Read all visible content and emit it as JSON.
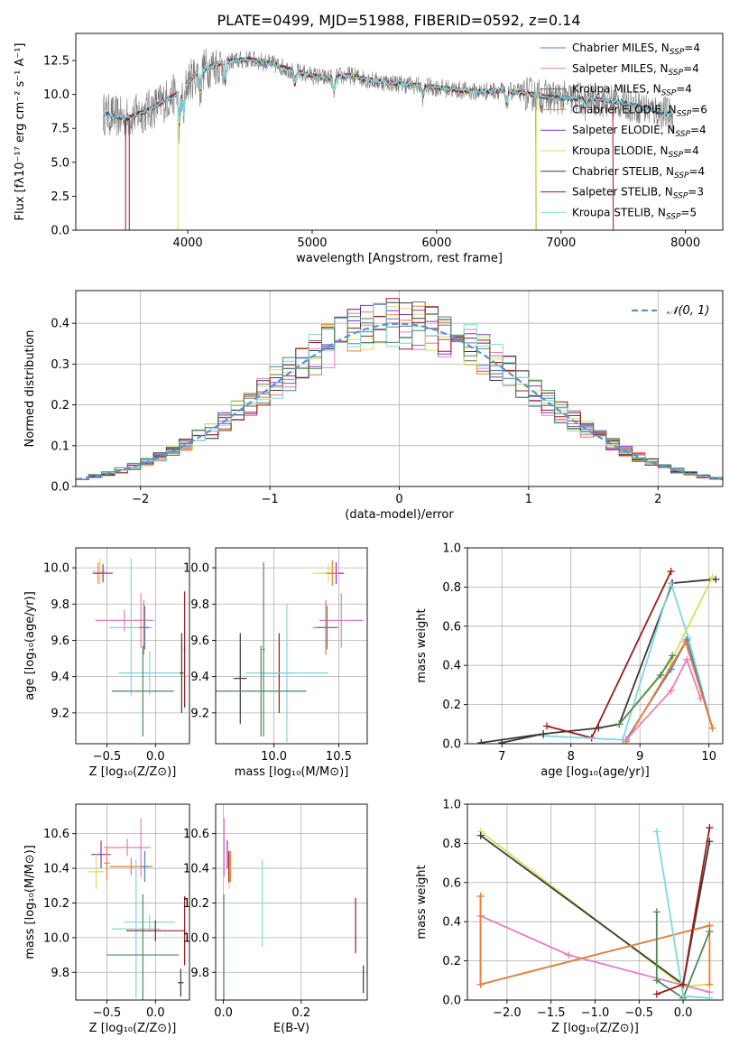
{
  "figure_title": "PLATE=0499, MJD=51988, FIBERID=0592, z=0.14",
  "colors": {
    "c_miles": "#4f7fbf",
    "s_miles": "#e27fc0",
    "k_miles": "#6b6b6b",
    "c_elodie": "#ef7f2f",
    "s_elodie": "#8b31c6",
    "k_elodie": "#d7df5b",
    "c_stelib": "#3a3a3a",
    "s_stelib": "#9e1b1b",
    "k_stelib": "#7fd8dc",
    "green": "#4e8a5a",
    "normal": "#5b8fd6"
  },
  "chart_data": [
    {
      "id": "spectrum",
      "type": "line",
      "title": "PLATE=0499, MJD=51988, FIBERID=0592, z=0.14",
      "xlabel": "wavelength [Angstrom, rest frame]",
      "ylabel": "Flux [fλ10⁻¹⁷ erg cm⁻² s⁻¹ A⁻¹]",
      "xlim": [
        3100,
        8300
      ],
      "ylim": [
        0,
        14.5
      ],
      "xticks": [
        "4000",
        "5000",
        "6000",
        "7000",
        "8000"
      ],
      "yticks": [
        "0.0",
        "2.5",
        "5.0",
        "7.5",
        "10.0",
        "12.5"
      ],
      "grid": false,
      "legend_position": "top-right",
      "continuum_x": [
        3320,
        3500,
        3700,
        3900,
        4100,
        4300,
        4500,
        4700,
        4900,
        5100,
        5300,
        5500,
        5700,
        5900,
        6100,
        6300,
        6500,
        6700,
        6900,
        7100,
        7300,
        7500,
        7700,
        7900
      ],
      "continuum_y": [
        8.6,
        8.2,
        8.9,
        10.0,
        11.8,
        12.4,
        12.6,
        12.2,
        11.6,
        11.2,
        11.4,
        11.0,
        10.8,
        10.6,
        10.4,
        10.2,
        10.3,
        10.1,
        9.8,
        9.7,
        9.6,
        9.4,
        8.9,
        8.5
      ],
      "series": [
        {
          "name": "Chabrier MILES, N_SSP=4",
          "legend_main": "Chabrier MILES, N",
          "legend_tail": "=4",
          "color_key": "c_miles"
        },
        {
          "name": "Salpeter MILES, N_SSP=4",
          "legend_main": "Salpeter MILES, N",
          "legend_tail": "=4",
          "color_key": "s_miles"
        },
        {
          "name": "Kroupa MILES, N_SSP=4",
          "legend_main": "Kroupa MILES, N",
          "legend_tail": "=4",
          "color_key": "k_miles"
        },
        {
          "name": "Chabrier ELODIE, N_SSP=6",
          "legend_main": "Chabrier ELODIE, N",
          "legend_tail": "=6",
          "color_key": "c_elodie"
        },
        {
          "name": "Salpeter ELODIE, N_SSP=4",
          "legend_main": "Salpeter ELODIE, N",
          "legend_tail": "=4",
          "color_key": "s_elodie"
        },
        {
          "name": "Kroupa ELODIE, N_SSP=4",
          "legend_main": "Kroupa ELODIE, N",
          "legend_tail": "=4",
          "color_key": "k_elodie"
        },
        {
          "name": "Chabrier STELIB, N_SSP=4",
          "legend_main": "Chabrier STELIB, N",
          "legend_tail": "=4",
          "color_key": "c_stelib"
        },
        {
          "name": "Salpeter STELIB, N_SSP=3",
          "legend_main": "Salpeter STELIB, N",
          "legend_tail": "=3",
          "color_key": "s_stelib"
        },
        {
          "name": "Kroupa STELIB, N_SSP=5",
          "legend_main": "Kroupa STELIB, N",
          "legend_tail": "=5",
          "color_key": "k_stelib"
        }
      ],
      "legend_sub": "SSP"
    },
    {
      "id": "residuals",
      "type": "histogram",
      "xlabel": "(data-model)/error",
      "ylabel": "Normed distribution",
      "xlim": [
        -2.5,
        2.5
      ],
      "ylim": [
        0,
        0.48
      ],
      "xticks": [
        "−2",
        "−1",
        "0",
        "1",
        "2"
      ],
      "yticks": [
        "0.0",
        "0.1",
        "0.2",
        "0.3",
        "0.4"
      ],
      "grid": true,
      "legend_position": "top-right",
      "legend": "𝒩(0, 1)",
      "bin_width": 0.1,
      "curve": {
        "name": "N(0,1)",
        "mean": 0,
        "sigma": 1
      }
    },
    {
      "id": "z_age",
      "type": "errorbar",
      "xlabel": "Z [log₁₀(Z/Z⊙)]",
      "ylabel": "age  [log₁₀(age/yr)]",
      "xlim": [
        -0.82,
        0.35
      ],
      "ylim": [
        9.03,
        10.11
      ],
      "xticks": [
        "−0.5",
        "0.0"
      ],
      "yticks": [
        "9.2",
        "9.4",
        "9.6",
        "9.8",
        "10.0"
      ],
      "grid": true,
      "points": [
        {
          "x": -0.59,
          "y": 9.97,
          "xerr": 0.06,
          "yerr": 0.06,
          "color_key": "c_elodie"
        },
        {
          "x": -0.57,
          "y": 9.98,
          "xerr": 0.08,
          "yerr": 0.07,
          "color_key": "k_elodie"
        },
        {
          "x": -0.54,
          "y": 9.97,
          "xerr": 0.1,
          "yerr": 0.05,
          "color_key": "s_elodie"
        },
        {
          "x": -0.32,
          "y": 9.71,
          "xerr": 0.3,
          "yerr": 0.06,
          "color_key": "s_miles"
        },
        {
          "x": -0.15,
          "y": 9.71,
          "xerr": 0.06,
          "yerr": 0.15,
          "color_key": "s_miles"
        },
        {
          "x": -0.25,
          "y": 9.67,
          "xerr": 0.22,
          "yerr": 0.38,
          "color_key": "k_stelib"
        },
        {
          "x": -0.12,
          "y": 9.67,
          "xerr": 0.06,
          "yerr": 0.15,
          "color_key": "c_elodie"
        },
        {
          "x": -0.11,
          "y": 9.67,
          "xerr": 0.04,
          "yerr": 0.12,
          "color_key": "c_miles"
        },
        {
          "x": -0.06,
          "y": 9.42,
          "xerr": 0.32,
          "yerr": 0.12,
          "color_key": "k_stelib"
        },
        {
          "x": -0.13,
          "y": 9.32,
          "xerr": 0.32,
          "yerr": 0.25,
          "color_key": "green"
        },
        {
          "x": 0.27,
          "y": 9.42,
          "xerr": 0.02,
          "yerr": 0.22,
          "color_key": "c_stelib"
        },
        {
          "x": 0.3,
          "y": 9.55,
          "xerr": 0.01,
          "yerr": 0.32,
          "color_key": "s_stelib"
        }
      ]
    },
    {
      "id": "mass_age",
      "type": "errorbar",
      "xlabel": "mass [log₁₀(M/M⊙)]",
      "ylabel": "",
      "xlim": [
        9.55,
        10.72
      ],
      "ylim": [
        9.03,
        10.11
      ],
      "xticks": [
        "10.0",
        "10.5"
      ],
      "yticks": [
        "9.2",
        "9.4",
        "9.6",
        "9.8",
        "10.0"
      ],
      "grid": true,
      "points": [
        {
          "x": 10.42,
          "y": 9.97,
          "xerr": 0.12,
          "yerr": 0.05,
          "color_key": "k_elodie"
        },
        {
          "x": 10.48,
          "y": 9.97,
          "xerr": 0.06,
          "yerr": 0.06,
          "color_key": "s_elodie"
        },
        {
          "x": 10.45,
          "y": 9.97,
          "xerr": 0.05,
          "yerr": 0.07,
          "color_key": "c_elodie"
        },
        {
          "x": 10.52,
          "y": 9.71,
          "xerr": 0.17,
          "yerr": 0.15,
          "color_key": "s_miles"
        },
        {
          "x": 10.4,
          "y": 9.67,
          "xerr": 0.1,
          "yerr": 0.15,
          "color_key": "c_elodie"
        },
        {
          "x": 10.41,
          "y": 9.67,
          "xerr": 0.08,
          "yerr": 0.12,
          "color_key": "c_miles"
        },
        {
          "x": 9.74,
          "y": 9.39,
          "xerr": 0.05,
          "yerr": 0.25,
          "color_key": "c_stelib"
        },
        {
          "x": 10.04,
          "y": 9.42,
          "xerr": 0.12,
          "yerr": 0.22,
          "color_key": "s_stelib"
        },
        {
          "x": 10.1,
          "y": 9.42,
          "xerr": 0.32,
          "yerr": 0.38,
          "color_key": "k_stelib"
        },
        {
          "x": 9.9,
          "y": 9.32,
          "xerr": 0.35,
          "yerr": 0.25,
          "color_key": "green"
        },
        {
          "x": 9.92,
          "y": 9.55,
          "xerr": 0.01,
          "yerr": 0.48,
          "color_key": "green"
        }
      ]
    },
    {
      "id": "age_weight",
      "type": "line",
      "xlabel": "age  [log₁₀(age/yr)]",
      "ylabel": "mass weight",
      "xlim": [
        6.5,
        10.2
      ],
      "ylim": [
        0,
        1.0
      ],
      "xticks": [
        "7",
        "8",
        "9",
        "10"
      ],
      "yticks": [
        "0.0",
        "0.2",
        "0.4",
        "0.6",
        "0.8",
        "1.0"
      ],
      "grid": true,
      "series": [
        {
          "color_key": "c_stelib",
          "x": [
            6.7,
            7.6,
            8.4,
            8.7,
            9.47,
            10.1
          ],
          "y": [
            0.005,
            0.05,
            0.08,
            0.1,
            0.82,
            0.84
          ]
        },
        {
          "color_key": "s_stelib",
          "x": [
            7.65,
            8.3,
            9.45
          ],
          "y": [
            0.09,
            0.03,
            0.88
          ]
        },
        {
          "color_key": "k_stelib",
          "x": [
            7.6,
            8.75,
            9.45,
            9.7,
            10.05
          ],
          "y": [
            0.04,
            0.02,
            0.82,
            0.54,
            0.08
          ]
        },
        {
          "color_key": "k_elodie",
          "x": [
            8.7,
            9.45,
            10.05
          ],
          "y": [
            0.1,
            0.42,
            0.85
          ]
        },
        {
          "color_key": "green",
          "x": [
            8.7,
            9.3,
            9.47
          ],
          "y": [
            0.1,
            0.35,
            0.45
          ]
        },
        {
          "color_key": "c_miles",
          "x": [
            8.8,
            9.45,
            9.68,
            10.05
          ],
          "y": [
            0.02,
            0.38,
            0.53,
            0.08
          ]
        },
        {
          "color_key": "c_elodie",
          "x": [
            8.8,
            9.66,
            10.05
          ],
          "y": [
            0.01,
            0.52,
            0.08
          ]
        },
        {
          "color_key": "s_miles",
          "x": [
            8.8,
            9.45,
            9.68,
            9.88
          ],
          "y": [
            0.02,
            0.27,
            0.43,
            0.23
          ]
        },
        {
          "color_key": "c_stelib",
          "x": [
            7.0,
            7.6
          ],
          "y": [
            0.005,
            0.05
          ]
        }
      ]
    },
    {
      "id": "z_mass",
      "type": "errorbar",
      "xlabel": "Z [log₁₀(Z/Z⊙)]",
      "ylabel": "mass [log₁₀(M/M⊙)]",
      "xlim": [
        -0.82,
        0.35
      ],
      "ylim": [
        9.64,
        10.77
      ],
      "xticks": [
        "−0.5",
        "0.0"
      ],
      "yticks": [
        "9.8",
        "10.0",
        "10.2",
        "10.4",
        "10.6"
      ],
      "grid": true,
      "points": [
        {
          "x": -0.56,
          "y": 10.48,
          "xerr": 0.1,
          "yerr": 0.08,
          "color_key": "s_elodie"
        },
        {
          "x": -0.61,
          "y": 10.38,
          "xerr": 0.08,
          "yerr": 0.1,
          "color_key": "k_elodie"
        },
        {
          "x": -0.5,
          "y": 10.43,
          "xerr": 0.03,
          "yerr": 0.1,
          "color_key": "c_elodie"
        },
        {
          "x": -0.29,
          "y": 10.52,
          "xerr": 0.24,
          "yerr": 0.05,
          "color_key": "s_miles"
        },
        {
          "x": -0.15,
          "y": 10.52,
          "xerr": 0.02,
          "yerr": 0.17,
          "color_key": "s_miles"
        },
        {
          "x": -0.25,
          "y": 10.41,
          "xerr": 0.22,
          "yerr": 0.05,
          "color_key": "c_elodie"
        },
        {
          "x": -0.11,
          "y": 10.41,
          "xerr": 0.04,
          "yerr": 0.09,
          "color_key": "c_miles"
        },
        {
          "x": -0.2,
          "y": 10.05,
          "xerr": 0.25,
          "yerr": 0.4,
          "color_key": "k_stelib"
        },
        {
          "x": -0.06,
          "y": 10.09,
          "xerr": 0.26,
          "yerr": 0.04,
          "color_key": "k_stelib"
        },
        {
          "x": -0.13,
          "y": 9.9,
          "xerr": 0.37,
          "yerr": 0.35,
          "color_key": "green"
        },
        {
          "x": 0.0,
          "y": 10.04,
          "xerr": 0.3,
          "yerr": 0.06,
          "color_key": "s_stelib"
        },
        {
          "x": 0.3,
          "y": 10.04,
          "xerr": 0.01,
          "yerr": 0.2,
          "color_key": "s_stelib"
        },
        {
          "x": 0.26,
          "y": 9.74,
          "xerr": 0.03,
          "yerr": 0.08,
          "color_key": "c_stelib"
        }
      ]
    },
    {
      "id": "ebv_mass",
      "type": "errorbar",
      "xlabel": "E(B-V)",
      "ylabel": "",
      "xlim": [
        -0.02,
        0.37
      ],
      "ylim": [
        9.64,
        10.77
      ],
      "xticks": [
        "0.0",
        "0.2"
      ],
      "yticks": [
        "9.8",
        "10.0",
        "10.2",
        "10.4",
        "10.6"
      ],
      "grid": true,
      "points": [
        {
          "x": 0.002,
          "y": 10.52,
          "xerr": 0,
          "yerr": 0.17,
          "color_key": "s_miles"
        },
        {
          "x": 0.01,
          "y": 10.48,
          "xerr": 0,
          "yerr": 0.08,
          "color_key": "s_elodie"
        },
        {
          "x": 0.015,
          "y": 10.38,
          "xerr": 0,
          "yerr": 0.1,
          "color_key": "k_elodie"
        },
        {
          "x": 0.018,
          "y": 10.41,
          "xerr": 0,
          "yerr": 0.09,
          "color_key": "c_elodie"
        },
        {
          "x": 0.014,
          "y": 10.41,
          "xerr": 0,
          "yerr": 0.09,
          "color_key": "s_stelib"
        },
        {
          "x": 0.001,
          "y": 9.9,
          "xerr": 0,
          "yerr": 0.35,
          "color_key": "green"
        },
        {
          "x": 0.1,
          "y": 10.2,
          "xerr": 0,
          "yerr": 0.25,
          "color_key": "k_stelib"
        },
        {
          "x": 0.34,
          "y": 10.07,
          "xerr": 0,
          "yerr": 0.16,
          "color_key": "s_stelib"
        },
        {
          "x": 0.36,
          "y": 9.76,
          "xerr": 0,
          "yerr": 0.08,
          "color_key": "c_stelib"
        }
      ]
    },
    {
      "id": "z_weight",
      "type": "line",
      "xlabel": "Z [log₁₀(Z/Z⊙)]",
      "ylabel": "mass weight",
      "xlim": [
        -2.45,
        0.45
      ],
      "ylim": [
        0,
        1.0
      ],
      "xticks": [
        "−2.0",
        "−1.5",
        "−1.0",
        "−0.5",
        "0.0"
      ],
      "yticks": [
        "0.0",
        "0.2",
        "0.4",
        "0.6",
        "0.8",
        "1.0"
      ],
      "grid": true,
      "series": [
        {
          "color_key": "k_elodie",
          "x": [
            -2.3,
            0.0,
            0.3
          ],
          "y": [
            0.86,
            0.07,
            0.08
          ]
        },
        {
          "color_key": "c_stelib",
          "x": [
            -2.3,
            0.0,
            0.3
          ],
          "y": [
            0.84,
            0.08,
            0.81
          ]
        },
        {
          "color_key": "s_miles",
          "x": [
            -2.3,
            -1.3,
            0.3
          ],
          "y": [
            0.43,
            0.23,
            0.04
          ]
        },
        {
          "color_key": "c_miles",
          "x": [
            -2.3,
            -2.3,
            0.3
          ],
          "y": [
            0.53,
            0.08,
            0.38
          ]
        },
        {
          "color_key": "c_elodie",
          "x": [
            -2.3,
            -2.3,
            0.3,
            0.3
          ],
          "y": [
            0.53,
            0.08,
            0.38,
            0.08
          ]
        },
        {
          "color_key": "green",
          "x": [
            -0.3,
            -0.3,
            0.0,
            0.3
          ],
          "y": [
            0.45,
            0.1,
            0.01,
            0.35
          ]
        },
        {
          "color_key": "k_stelib",
          "x": [
            -0.3,
            0.0,
            0.0,
            0.3
          ],
          "y": [
            0.86,
            0.02,
            0.02,
            0.01
          ]
        },
        {
          "color_key": "s_stelib",
          "x": [
            -0.3,
            0.0,
            0.3
          ],
          "y": [
            0.03,
            0.08,
            0.88
          ]
        }
      ]
    }
  ]
}
